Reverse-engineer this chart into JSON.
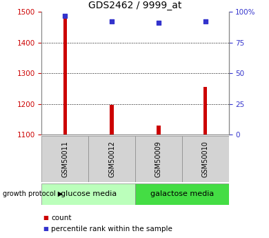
{
  "title": "GDS2462 / 9999_at",
  "samples": [
    "GSM50011",
    "GSM50012",
    "GSM50009",
    "GSM50010"
  ],
  "counts": [
    1482,
    1197,
    1128,
    1255
  ],
  "percentiles": [
    97,
    92,
    91,
    92
  ],
  "ylim_left": [
    1100,
    1500
  ],
  "ylim_right": [
    0,
    100
  ],
  "yticks_left": [
    1100,
    1200,
    1300,
    1400,
    1500
  ],
  "yticks_right": [
    0,
    25,
    50,
    75,
    100
  ],
  "ytick_labels_right": [
    "0",
    "25",
    "50",
    "75",
    "100%"
  ],
  "grid_values": [
    1200,
    1300,
    1400
  ],
  "bar_color": "#cc0000",
  "dot_color": "#3333cc",
  "bar_width": 0.08,
  "groups": [
    {
      "label": "glucose media",
      "samples": [
        0,
        1
      ],
      "color": "#bbffbb"
    },
    {
      "label": "galactose media",
      "samples": [
        2,
        3
      ],
      "color": "#44dd44"
    }
  ],
  "growth_protocol_label": "growth protocol ▶",
  "legend_count_label": "count",
  "legend_percentile_label": "percentile rank within the sample",
  "tick_label_color_left": "#cc0000",
  "tick_label_color_right": "#3333cc",
  "title_fontsize": 10,
  "tick_fontsize": 7.5,
  "sample_label_fontsize": 7,
  "group_label_fontsize": 8,
  "legend_fontsize": 7.5,
  "sample_box_color": "#d3d3d3",
  "sample_box_edgecolor": "#888888"
}
